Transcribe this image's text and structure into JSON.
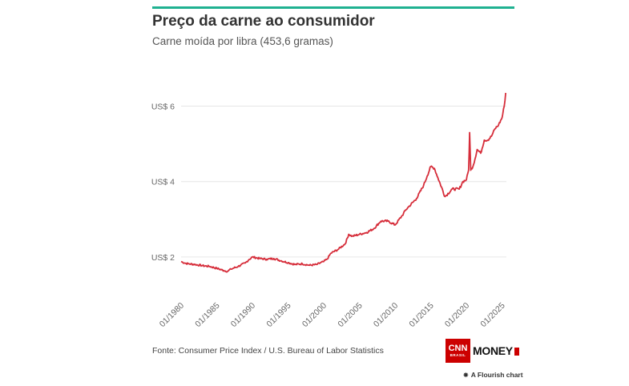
{
  "header": {
    "title": "Preço da carne ao consumidor",
    "subtitle": "Carne moída por libra (453,6 gramas)"
  },
  "footer": {
    "source": "Fonte: Consumer Price Index / U.S. Bureau of Labor Statistics",
    "logo_cnn": "CNN",
    "logo_cnn_sub": "BRASIL",
    "logo_money": "MONEY",
    "flourish_icon": "flourish-logo-icon",
    "flourish_label": "A Flourish chart"
  },
  "colors": {
    "accent": "#1fb191",
    "line": "#d62d3a",
    "grid": "#e6e6e6",
    "brand_red": "#cc0000"
  },
  "chart_data": {
    "type": "line",
    "title": "Preço da carne ao consumidor",
    "subtitle": "Carne moída por libra (453,6 gramas)",
    "xlabel": "",
    "ylabel": "",
    "ylim": [
      1,
      7.2
    ],
    "xlim": [
      1980,
      2025.6
    ],
    "grid": true,
    "y_ticks": [
      {
        "value": 2,
        "label": "US$ 2"
      },
      {
        "value": 4,
        "label": "US$ 4"
      },
      {
        "value": 6,
        "label": "US$ 6"
      }
    ],
    "x_ticks": [
      {
        "value": 1980,
        "label": "01/1980"
      },
      {
        "value": 1985,
        "label": "01/1985"
      },
      {
        "value": 1990,
        "label": "01/1990"
      },
      {
        "value": 1995,
        "label": "01/1995"
      },
      {
        "value": 2000,
        "label": "01/2000"
      },
      {
        "value": 2005,
        "label": "01/2005"
      },
      {
        "value": 2010,
        "label": "01/2010"
      },
      {
        "value": 2015,
        "label": "01/2015"
      },
      {
        "value": 2020,
        "label": "01/2020"
      },
      {
        "value": 2025,
        "label": "01/2025"
      }
    ],
    "series": [
      {
        "x": [
          1980,
          1980.5,
          1981,
          1982,
          1983,
          1984,
          1985,
          1986,
          1986.5,
          1987,
          1988,
          1989,
          1989.5,
          1990,
          1991,
          1992,
          1993,
          1994,
          1995,
          1996,
          1997,
          1998,
          1999,
          2000,
          2000.5,
          2001,
          2002,
          2003,
          2003.5,
          2004,
          2005,
          2006,
          2007,
          2008,
          2009,
          2010,
          2011,
          2011.5,
          2012,
          2013,
          2014,
          2014.5,
          2015,
          2015.5,
          2016,
          2017,
          2018,
          2019,
          2019.5,
          2020,
          2020.3,
          2020.45,
          2020.6,
          2021,
          2021.5,
          2022,
          2022.5,
          2023,
          2023.5,
          2024,
          2024.5,
          2025,
          2025.3,
          2025.5
        ],
        "values": [
          1.88,
          1.84,
          1.82,
          1.8,
          1.77,
          1.75,
          1.7,
          1.64,
          1.62,
          1.68,
          1.75,
          1.84,
          1.93,
          2.0,
          1.96,
          1.94,
          1.96,
          1.9,
          1.85,
          1.8,
          1.82,
          1.78,
          1.8,
          1.88,
          1.95,
          2.1,
          2.2,
          2.35,
          2.6,
          2.55,
          2.6,
          2.65,
          2.75,
          2.95,
          2.95,
          2.85,
          3.1,
          3.25,
          3.35,
          3.55,
          3.9,
          4.15,
          4.4,
          4.35,
          4.1,
          3.6,
          3.8,
          3.8,
          4.0,
          4.05,
          4.3,
          5.3,
          4.3,
          4.45,
          4.85,
          4.75,
          5.1,
          5.1,
          5.2,
          5.4,
          5.5,
          5.7,
          6.0,
          6.35
        ]
      }
    ]
  }
}
